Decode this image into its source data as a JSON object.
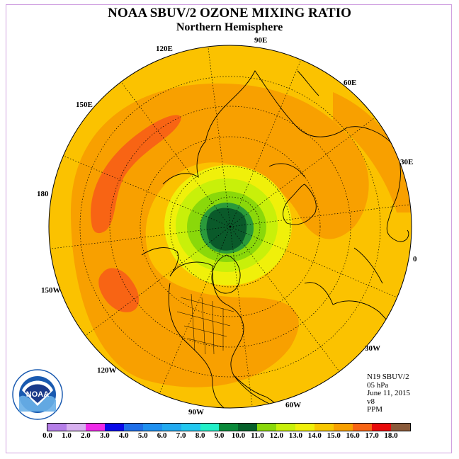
{
  "title": "NOAA SBUV/2 OZONE MIXING RATIO",
  "subtitle": "Northern Hemisphere",
  "longitude_labels": [
    "90E",
    "60E",
    "30E",
    "0",
    "30W",
    "60W",
    "90W",
    "120W",
    "150W",
    "180",
    "150E",
    "120E"
  ],
  "info": {
    "satellite": "N19 SBUV/2",
    "level": "05 hPa",
    "date": "June 11, 2015",
    "version": "v8",
    "units": "PPM"
  },
  "logo_text": "NOAA",
  "colorbar": {
    "ticks": [
      "0.0",
      "1.0",
      "2.0",
      "3.0",
      "4.0",
      "5.0",
      "6.0",
      "7.0",
      "8.0",
      "9.0",
      "10.0",
      "11.0",
      "12.0",
      "13.0",
      "14.0",
      "15.0",
      "16.0",
      "17.0",
      "18.0"
    ],
    "colors": [
      "#b57ee8",
      "#d8b0f0",
      "#ee2ae8",
      "#0a0ae8",
      "#1e6ee8",
      "#1e90f0",
      "#22aaf0",
      "#22c8f0",
      "#22f0c8",
      "#0a8a3a",
      "#06602a",
      "#8ad80a",
      "#c8f00a",
      "#f0f00a",
      "#f8c800",
      "#f8a000",
      "#f86414",
      "#e80a0a",
      "#8a5a3a"
    ]
  }
}
